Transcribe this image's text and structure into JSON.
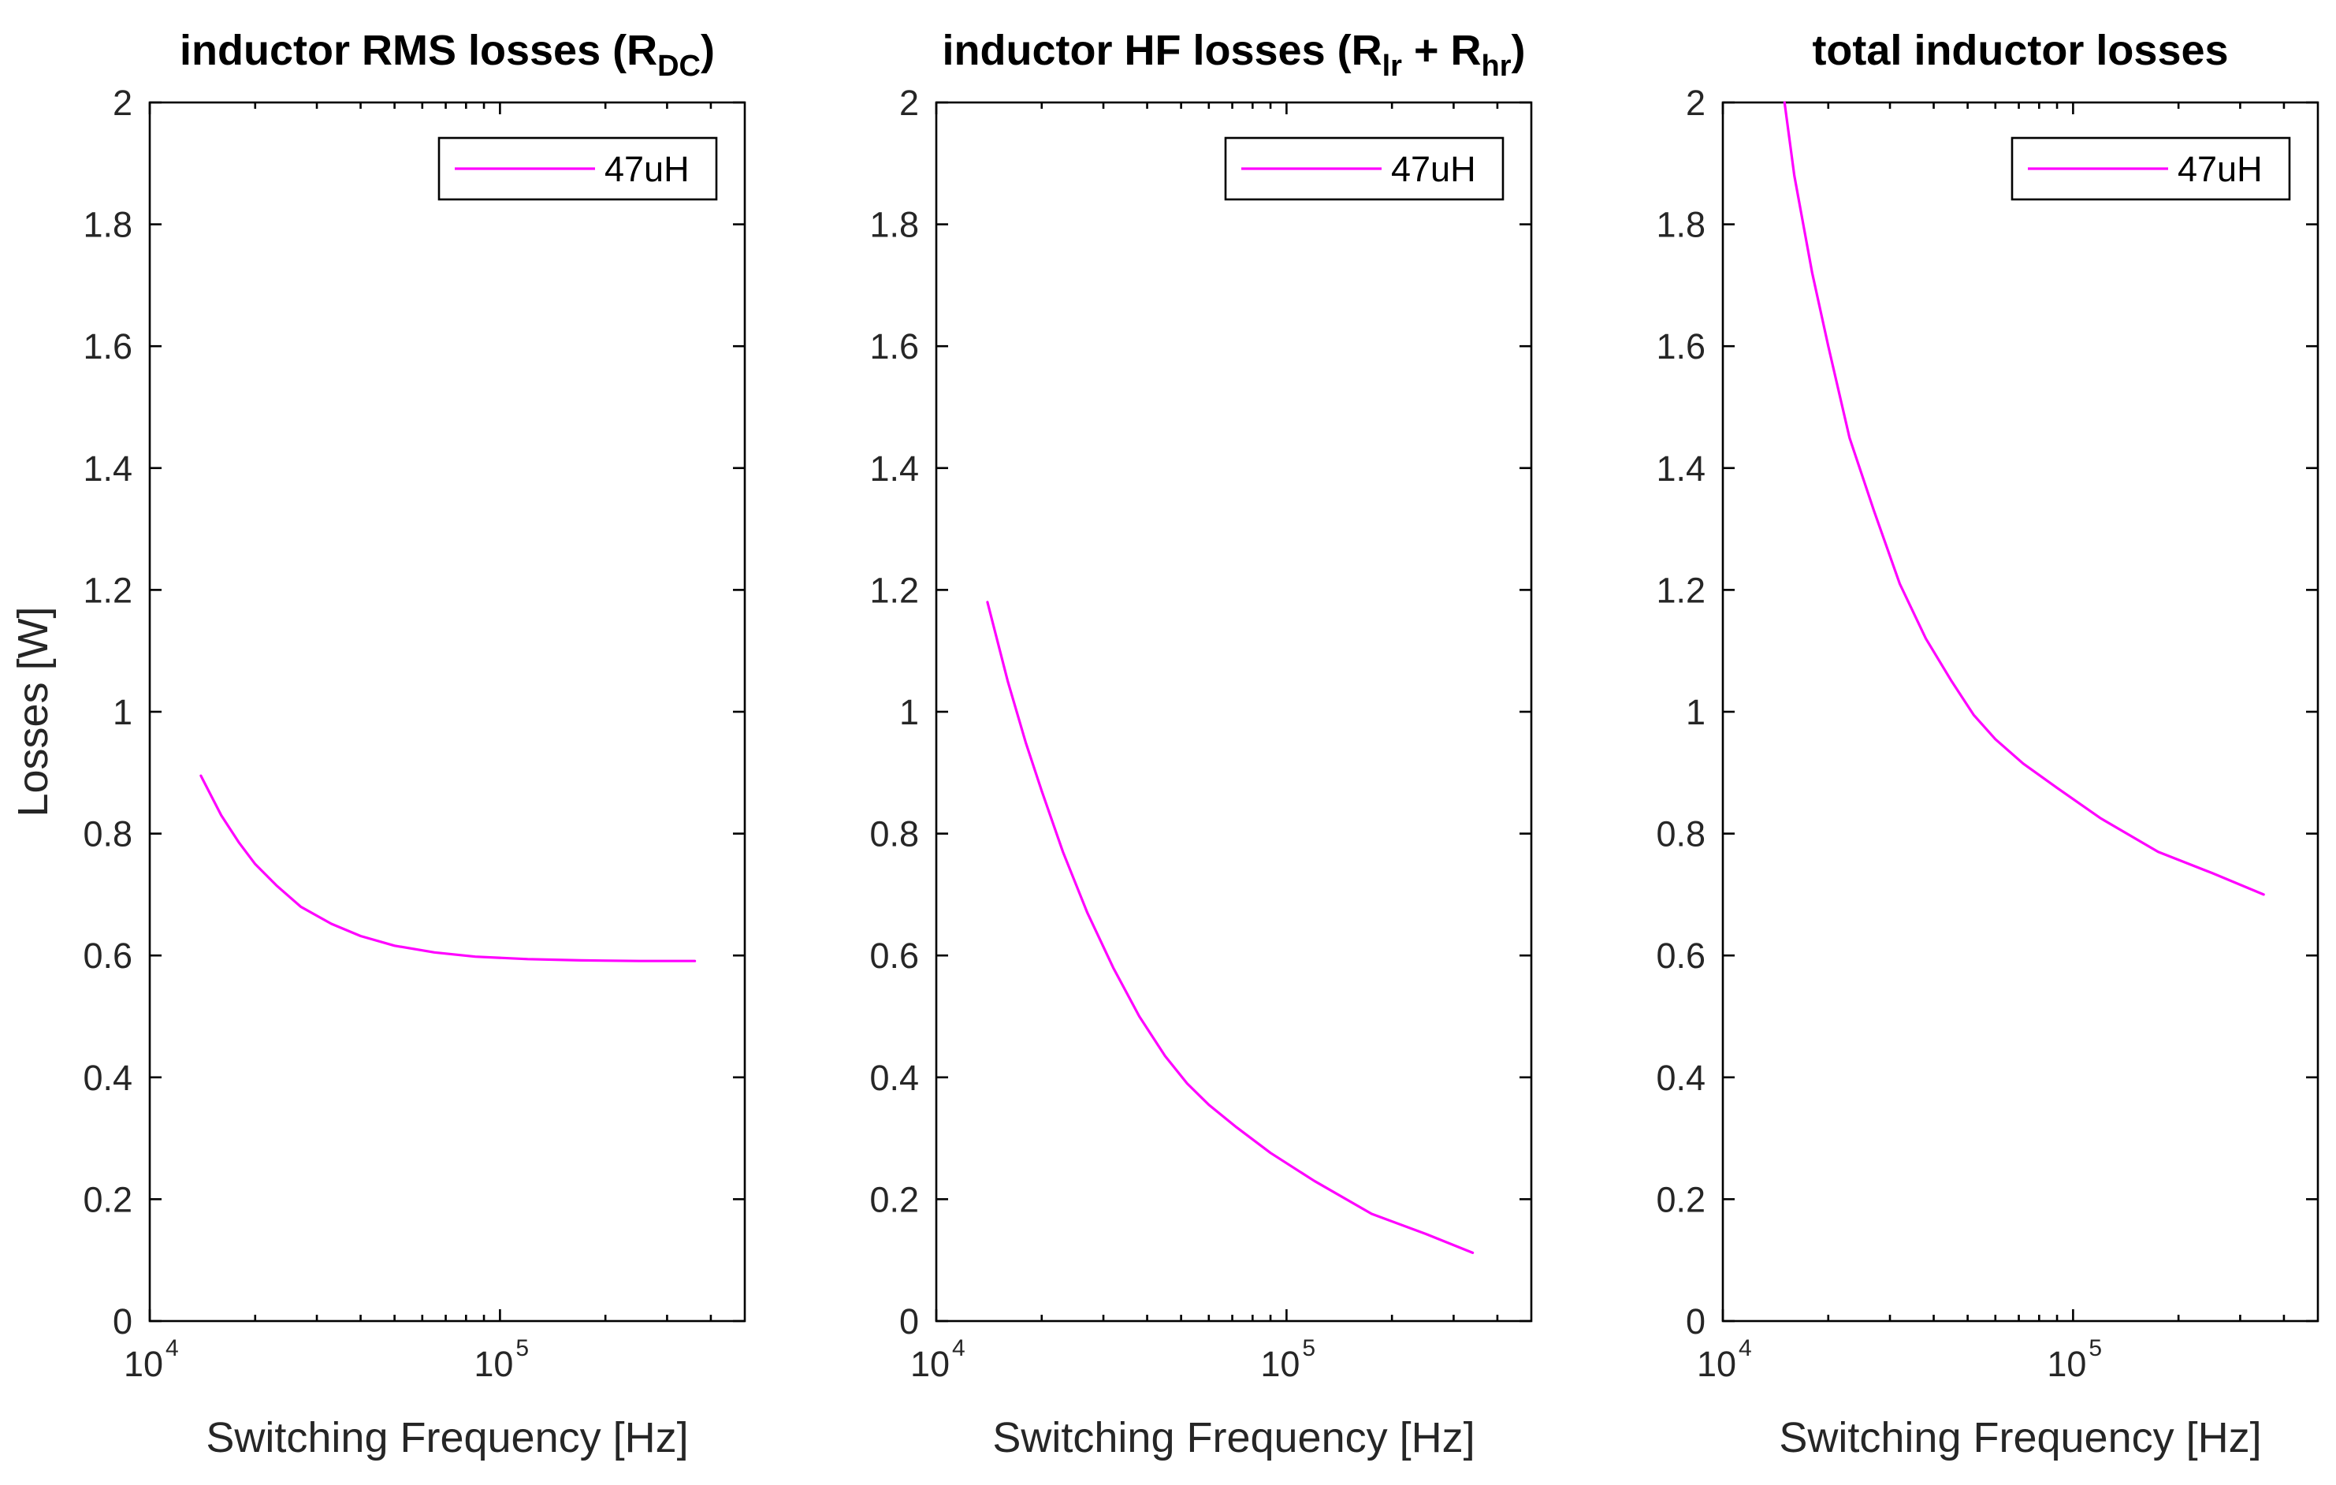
{
  "chart_data": [
    {
      "type": "line",
      "title": {
        "main": "inductor RMS losses (R",
        "sub1": "DC",
        "mid": "",
        "sub2": "",
        "end": ")"
      },
      "xlabel": "Switching Frequency [Hz]",
      "ylabel": "Losses [W]",
      "xscale": "log",
      "xlim": [
        10000,
        500000
      ],
      "ylim": [
        0,
        2
      ],
      "xticks": [
        {
          "base": "10",
          "exp": "4"
        },
        {
          "base": "10",
          "exp": "5"
        }
      ],
      "yticks": [
        "0",
        "0.2",
        "0.4",
        "0.6",
        "0.8",
        "1",
        "1.2",
        "1.4",
        "1.6",
        "1.8",
        "2"
      ],
      "legend_position": "top-right",
      "series": [
        {
          "name": "47uH",
          "color": "#ff00ff",
          "x": [
            14000,
            16000,
            18000,
            20000,
            23000,
            27000,
            33000,
            40000,
            50000,
            65000,
            85000,
            120000,
            170000,
            250000,
            360000
          ],
          "y": [
            0.895,
            0.83,
            0.785,
            0.75,
            0.715,
            0.68,
            0.652,
            0.632,
            0.616,
            0.605,
            0.598,
            0.594,
            0.592,
            0.591,
            0.591
          ]
        }
      ]
    },
    {
      "type": "line",
      "title": {
        "main": "inductor HF losses (R",
        "sub1": "lr",
        "mid": " + R",
        "sub2": "hr",
        "end": ")"
      },
      "xlabel": "Switching Frequency [Hz]",
      "ylabel": "",
      "xscale": "log",
      "xlim": [
        10000,
        500000
      ],
      "ylim": [
        0,
        2
      ],
      "xticks": [
        {
          "base": "10",
          "exp": "4"
        },
        {
          "base": "10",
          "exp": "5"
        }
      ],
      "yticks": [
        "0",
        "0.2",
        "0.4",
        "0.6",
        "0.8",
        "1",
        "1.2",
        "1.4",
        "1.6",
        "1.8",
        "2"
      ],
      "legend_position": "top-right",
      "series": [
        {
          "name": "47uH",
          "color": "#ff00ff",
          "x": [
            14000,
            16000,
            18000,
            20000,
            23000,
            27000,
            32000,
            38000,
            45000,
            52000,
            60000,
            72000,
            90000,
            120000,
            175000,
            250000,
            340000
          ],
          "y": [
            1.18,
            1.05,
            0.95,
            0.87,
            0.77,
            0.67,
            0.58,
            0.5,
            0.435,
            0.39,
            0.355,
            0.318,
            0.276,
            0.23,
            0.176,
            0.143,
            0.112
          ]
        }
      ]
    },
    {
      "type": "line",
      "title": {
        "main": "total inductor losses",
        "sub1": "",
        "mid": "",
        "sub2": "",
        "end": ""
      },
      "xlabel": "Switching Frequency [Hz]",
      "ylabel": "",
      "xscale": "log",
      "xlim": [
        10000,
        500000
      ],
      "ylim": [
        0,
        2
      ],
      "xticks": [
        {
          "base": "10",
          "exp": "4"
        },
        {
          "base": "10",
          "exp": "5"
        }
      ],
      "yticks": [
        "0",
        "0.2",
        "0.4",
        "0.6",
        "0.8",
        "1",
        "1.2",
        "1.4",
        "1.6",
        "1.8",
        "2"
      ],
      "legend_position": "top-right",
      "series": [
        {
          "name": "47uH",
          "color": "#ff00ff",
          "x": [
            15000,
            16000,
            18000,
            20000,
            23000,
            27000,
            32000,
            38000,
            45000,
            52000,
            60000,
            72000,
            90000,
            120000,
            175000,
            250000,
            350000
          ],
          "y": [
            2.0,
            1.88,
            1.72,
            1.6,
            1.45,
            1.33,
            1.21,
            1.12,
            1.05,
            0.995,
            0.955,
            0.915,
            0.875,
            0.825,
            0.77,
            0.735,
            0.7
          ]
        }
      ]
    }
  ]
}
